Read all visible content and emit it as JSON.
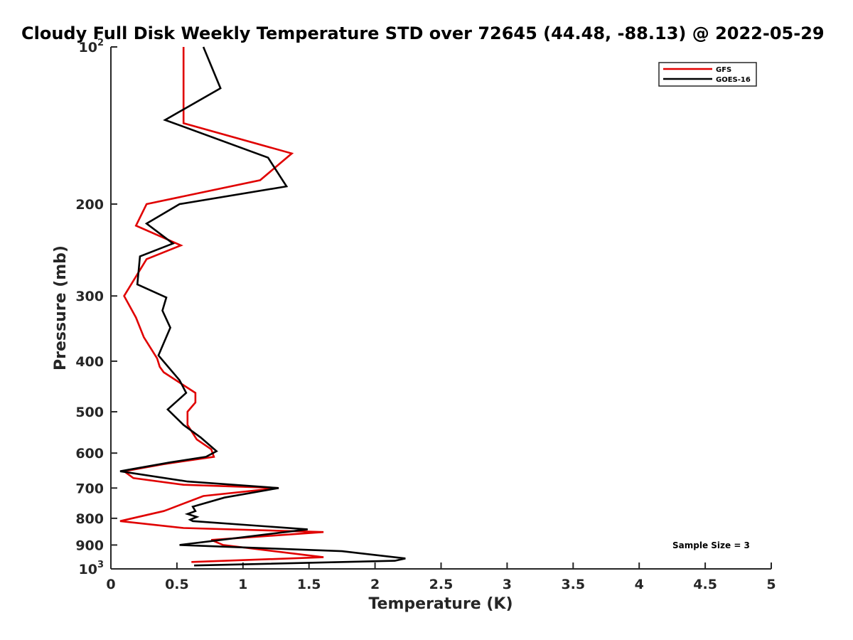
{
  "chart_data": {
    "type": "line",
    "title": "Cloudy Full Disk Weekly Temperature STD over 72645 (44.48, -88.13) @ 2022-05-29",
    "xlabel": "Temperature (K)",
    "ylabel": "Pressure (mb)",
    "xlim": [
      0,
      5
    ],
    "ylim": [
      100,
      1000
    ],
    "yscale": "log",
    "y_reversed": true,
    "grid": false,
    "legend_position": "top-right",
    "x_ticks": [
      0,
      0.5,
      1,
      1.5,
      2,
      2.5,
      3,
      3.5,
      4,
      4.5,
      5
    ],
    "x_tick_labels": [
      "0",
      "0.5",
      "1",
      "1.5",
      "2",
      "2.5",
      "3",
      "3.5",
      "4",
      "4.5",
      "5"
    ],
    "y_ticks": [
      100,
      200,
      300,
      400,
      500,
      600,
      700,
      800,
      900,
      1000
    ],
    "y_tick_labels": [
      {
        "base": "10",
        "exp": "2"
      },
      {
        "base": "200",
        "exp": ""
      },
      {
        "base": "300",
        "exp": ""
      },
      {
        "base": "400",
        "exp": ""
      },
      {
        "base": "500",
        "exp": ""
      },
      {
        "base": "600",
        "exp": ""
      },
      {
        "base": "700",
        "exp": ""
      },
      {
        "base": "800",
        "exp": ""
      },
      {
        "base": "900",
        "exp": ""
      },
      {
        "base": "10",
        "exp": "3"
      }
    ],
    "annotation": "Sample Size = 3",
    "series": [
      {
        "name": "GFS",
        "color": "#e00000",
        "points": [
          [
            0.55,
            100
          ],
          [
            0.55,
            140
          ],
          [
            1.37,
            160
          ],
          [
            1.13,
            180
          ],
          [
            0.27,
            200
          ],
          [
            0.19,
            220
          ],
          [
            0.53,
            240
          ],
          [
            0.27,
            255
          ],
          [
            0.1,
            300
          ],
          [
            0.19,
            330
          ],
          [
            0.25,
            360
          ],
          [
            0.35,
            395
          ],
          [
            0.37,
            410
          ],
          [
            0.4,
            420
          ],
          [
            0.64,
            460
          ],
          [
            0.64,
            480
          ],
          [
            0.58,
            500
          ],
          [
            0.58,
            530
          ],
          [
            0.65,
            565
          ],
          [
            0.76,
            590
          ],
          [
            0.78,
            610
          ],
          [
            0.4,
            630
          ],
          [
            0.1,
            650
          ],
          [
            0.17,
            670
          ],
          [
            0.55,
            690
          ],
          [
            1.27,
            700
          ],
          [
            0.7,
            725
          ],
          [
            0.43,
            770
          ],
          [
            0.4,
            775
          ],
          [
            0.07,
            810
          ],
          [
            0.55,
            835
          ],
          [
            1.61,
            850
          ],
          [
            0.76,
            880
          ],
          [
            0.85,
            900
          ],
          [
            1.61,
            950
          ],
          [
            0.61,
            970
          ]
        ]
      },
      {
        "name": "GOES-16",
        "color": "#000000",
        "points": [
          [
            0.7,
            100
          ],
          [
            0.83,
            120
          ],
          [
            0.41,
            138
          ],
          [
            1.19,
            163
          ],
          [
            1.33,
            185
          ],
          [
            0.52,
            200
          ],
          [
            0.27,
            218
          ],
          [
            0.47,
            238
          ],
          [
            0.22,
            252
          ],
          [
            0.2,
            285
          ],
          [
            0.42,
            302
          ],
          [
            0.39,
            320
          ],
          [
            0.45,
            345
          ],
          [
            0.36,
            390
          ],
          [
            0.52,
            435
          ],
          [
            0.57,
            460
          ],
          [
            0.43,
            495
          ],
          [
            0.55,
            530
          ],
          [
            0.68,
            560
          ],
          [
            0.8,
            595
          ],
          [
            0.72,
            610
          ],
          [
            0.45,
            625
          ],
          [
            0.07,
            650
          ],
          [
            0.58,
            680
          ],
          [
            1.27,
            700
          ],
          [
            0.86,
            730
          ],
          [
            0.62,
            760
          ],
          [
            0.64,
            775
          ],
          [
            0.58,
            785
          ],
          [
            0.65,
            795
          ],
          [
            0.6,
            805
          ],
          [
            0.62,
            810
          ],
          [
            1.49,
            840
          ],
          [
            0.52,
            900
          ],
          [
            1.75,
            925
          ],
          [
            2.23,
            955
          ],
          [
            2.15,
            965
          ],
          [
            0.63,
            985
          ]
        ]
      }
    ]
  }
}
